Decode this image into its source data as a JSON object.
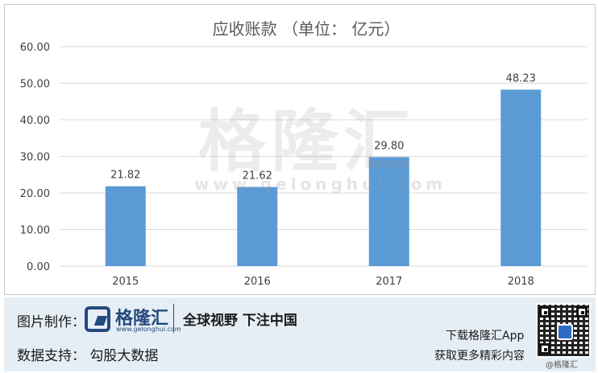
{
  "chart_data": {
    "type": "bar",
    "title": "应收账款 （单位： 亿元）",
    "categories": [
      "2015",
      "2016",
      "2017",
      "2018"
    ],
    "values": [
      21.82,
      21.62,
      29.8,
      48.23
    ],
    "data_labels": [
      "21.82",
      "21.62",
      "29.80",
      "48.23"
    ],
    "ylim": [
      0,
      60
    ],
    "yticks": [
      "0.00",
      "10.00",
      "20.00",
      "30.00",
      "40.00",
      "50.00",
      "60.00"
    ],
    "grid": true,
    "bar_color": "#5b9bd5"
  },
  "watermark": {
    "name": "格隆汇",
    "url": "www.gelonghui.com"
  },
  "footer": {
    "credit_label": "图片制作：",
    "logo_name": "格隆汇",
    "logo_url": "www.gelonghui.com",
    "slogan": "全球视野 下注中国",
    "source_label": "数据支持：  勾股大数据",
    "download": "下载格隆汇App",
    "more": "获取更多精彩内容",
    "qr_caption": "@格隆汇",
    "logo_color": "#24497d"
  }
}
